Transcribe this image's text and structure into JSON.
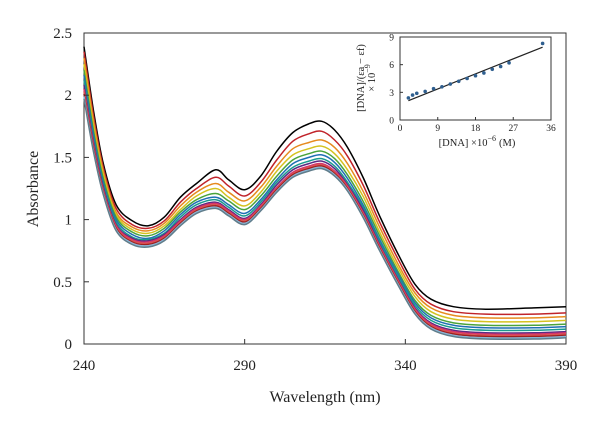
{
  "chart_data": [
    {
      "type": "line",
      "xlabel": "Wavelength (nm)",
      "ylabel": "Absorbance",
      "xlim": [
        240,
        390
      ],
      "ylim": [
        0,
        2.5
      ],
      "xticks": [
        "240",
        "290",
        "340",
        "390"
      ],
      "yticks": [
        "0",
        "0.5",
        "1",
        "1.5",
        "2",
        "2.5"
      ],
      "grid": false,
      "legend": "none",
      "x": [
        240,
        243,
        246,
        250,
        255,
        260,
        265,
        270,
        275,
        281,
        285,
        290,
        295,
        300,
        305,
        310,
        314,
        318,
        322,
        327,
        332,
        338,
        343,
        348,
        355,
        365,
        380,
        390
      ],
      "series": [
        {
          "color": "#000000",
          "values": [
            2.39,
            1.87,
            1.45,
            1.12,
            0.99,
            0.95,
            1.02,
            1.18,
            1.29,
            1.4,
            1.32,
            1.24,
            1.35,
            1.55,
            1.7,
            1.77,
            1.79,
            1.72,
            1.58,
            1.33,
            1.03,
            0.71,
            0.48,
            0.36,
            0.3,
            0.28,
            0.29,
            0.3
          ]
        },
        {
          "color": "#c0232a",
          "values": [
            2.35,
            1.83,
            1.42,
            1.09,
            0.96,
            0.93,
            0.99,
            1.14,
            1.25,
            1.34,
            1.27,
            1.19,
            1.3,
            1.48,
            1.63,
            1.69,
            1.71,
            1.64,
            1.51,
            1.27,
            0.98,
            0.67,
            0.44,
            0.32,
            0.26,
            0.24,
            0.24,
            0.25
          ]
        },
        {
          "color": "#e68a1f",
          "values": [
            2.3,
            1.79,
            1.39,
            1.06,
            0.94,
            0.91,
            0.97,
            1.11,
            1.22,
            1.29,
            1.22,
            1.15,
            1.26,
            1.43,
            1.57,
            1.62,
            1.64,
            1.58,
            1.45,
            1.22,
            0.94,
            0.63,
            0.41,
            0.29,
            0.23,
            0.21,
            0.21,
            0.22
          ]
        },
        {
          "color": "#d4c21f",
          "values": [
            2.25,
            1.75,
            1.36,
            1.04,
            0.92,
            0.89,
            0.95,
            1.08,
            1.19,
            1.25,
            1.18,
            1.11,
            1.22,
            1.39,
            1.52,
            1.57,
            1.59,
            1.53,
            1.4,
            1.18,
            0.9,
            0.6,
            0.38,
            0.26,
            0.2,
            0.18,
            0.18,
            0.19
          ]
        },
        {
          "color": "#4aa33b",
          "values": [
            2.2,
            1.71,
            1.33,
            1.02,
            0.9,
            0.87,
            0.93,
            1.06,
            1.16,
            1.21,
            1.15,
            1.08,
            1.19,
            1.35,
            1.48,
            1.53,
            1.55,
            1.49,
            1.36,
            1.14,
            0.87,
            0.57,
            0.35,
            0.23,
            0.17,
            0.15,
            0.15,
            0.16
          ]
        },
        {
          "color": "#1f6fb4",
          "values": [
            2.16,
            1.68,
            1.3,
            1.0,
            0.88,
            0.85,
            0.91,
            1.04,
            1.14,
            1.18,
            1.12,
            1.05,
            1.16,
            1.32,
            1.45,
            1.5,
            1.52,
            1.46,
            1.33,
            1.11,
            0.84,
            0.55,
            0.33,
            0.21,
            0.15,
            0.13,
            0.13,
            0.14
          ]
        },
        {
          "color": "#1a9a8f",
          "values": [
            2.12,
            1.65,
            1.28,
            0.98,
            0.86,
            0.84,
            0.89,
            1.02,
            1.12,
            1.16,
            1.1,
            1.03,
            1.14,
            1.3,
            1.42,
            1.47,
            1.49,
            1.43,
            1.3,
            1.09,
            0.82,
            0.53,
            0.31,
            0.19,
            0.13,
            0.11,
            0.11,
            0.12
          ]
        },
        {
          "color": "#5a2a82",
          "values": [
            2.08,
            1.62,
            1.26,
            0.96,
            0.85,
            0.83,
            0.88,
            1.0,
            1.1,
            1.14,
            1.08,
            1.01,
            1.12,
            1.28,
            1.4,
            1.45,
            1.47,
            1.41,
            1.28,
            1.07,
            0.8,
            0.51,
            0.29,
            0.17,
            0.11,
            0.09,
            0.09,
            0.1
          ]
        },
        {
          "color": "#d6336c",
          "values": [
            2.05,
            1.6,
            1.24,
            0.95,
            0.84,
            0.82,
            0.87,
            0.99,
            1.09,
            1.13,
            1.07,
            1.0,
            1.11,
            1.26,
            1.38,
            1.43,
            1.45,
            1.39,
            1.27,
            1.05,
            0.79,
            0.5,
            0.28,
            0.16,
            0.1,
            0.08,
            0.08,
            0.09
          ]
        },
        {
          "color": "#d9534f",
          "values": [
            2.03,
            1.58,
            1.23,
            0.94,
            0.83,
            0.81,
            0.86,
            0.98,
            1.08,
            1.12,
            1.06,
            0.99,
            1.1,
            1.25,
            1.37,
            1.42,
            1.44,
            1.38,
            1.26,
            1.04,
            0.78,
            0.49,
            0.27,
            0.15,
            0.09,
            0.07,
            0.07,
            0.08
          ]
        },
        {
          "color": "#9e1f1f",
          "values": [
            2.01,
            1.57,
            1.22,
            0.93,
            0.82,
            0.8,
            0.85,
            0.97,
            1.07,
            1.11,
            1.05,
            0.98,
            1.09,
            1.24,
            1.36,
            1.41,
            1.43,
            1.37,
            1.25,
            1.03,
            0.77,
            0.48,
            0.26,
            0.14,
            0.08,
            0.06,
            0.06,
            0.07
          ]
        },
        {
          "color": "#8ab6d6",
          "values": [
            1.99,
            1.55,
            1.21,
            0.92,
            0.81,
            0.79,
            0.84,
            0.96,
            1.06,
            1.1,
            1.04,
            0.97,
            1.08,
            1.23,
            1.35,
            1.4,
            1.42,
            1.36,
            1.24,
            1.02,
            0.76,
            0.47,
            0.25,
            0.13,
            0.07,
            0.05,
            0.05,
            0.06
          ]
        },
        {
          "color": "#607d8b",
          "values": [
            1.97,
            1.54,
            1.2,
            0.91,
            0.8,
            0.78,
            0.83,
            0.95,
            1.05,
            1.09,
            1.03,
            0.96,
            1.07,
            1.22,
            1.34,
            1.39,
            1.41,
            1.35,
            1.23,
            1.01,
            0.75,
            0.46,
            0.24,
            0.12,
            0.06,
            0.04,
            0.04,
            0.05
          ]
        }
      ]
    },
    {
      "type": "scatter",
      "xlabel": "[DNA] ×10",
      "xlabel_exp": "−6",
      "xlabel_unit": "(M)",
      "ylabel": "[DNA]/(εa − εf)",
      "ylabel_exp_base": "× 10",
      "ylabel_exp": "−9",
      "xlim": [
        0,
        36
      ],
      "ylim": [
        0,
        9
      ],
      "xticks": [
        "0",
        "9",
        "18",
        "27",
        "36"
      ],
      "yticks": [
        "0",
        "3",
        "6",
        "9"
      ],
      "x": [
        2,
        3,
        4,
        6,
        8,
        10,
        12,
        14,
        16,
        18,
        20,
        22,
        24,
        26,
        34
      ],
      "y": [
        2.4,
        2.7,
        2.9,
        3.1,
        3.4,
        3.6,
        3.9,
        4.2,
        4.5,
        4.8,
        5.1,
        5.5,
        5.8,
        6.2,
        8.3
      ],
      "fit": {
        "x": [
          2,
          34
        ],
        "y": [
          2.1,
          7.9
        ]
      }
    }
  ]
}
